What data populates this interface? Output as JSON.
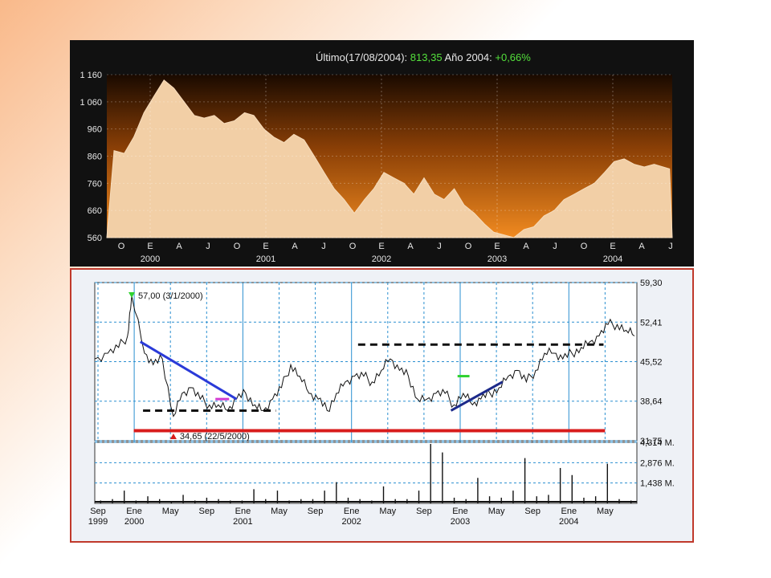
{
  "status": {
    "ultimo_label": "Último(17/08/2004):",
    "ultimo_value": "813,35",
    "anio_label": "Año 2004:",
    "anio_value": "+0,66%"
  },
  "colors": {
    "top_fill_light": "#f2cfa6",
    "top_fill_dark": "#d86a10",
    "top_bg": "#111111",
    "bottom_bg": "#eef1f6",
    "grid": "#2a8fd0"
  },
  "chart_data": [
    {
      "type": "area",
      "x": [
        "2000-01-01",
        "2000-02-01",
        "2000-03-01",
        "2000-04-01",
        "2000-05-01",
        "2000-06-01",
        "2000-07-01",
        "2000-08-01",
        "2000-09-01",
        "2000-10-01",
        "2000-11-01",
        "2000-12-01",
        "2001-01-01",
        "2001-02-01",
        "2001-03-01",
        "2001-04-01",
        "2001-05-01",
        "2001-06-01",
        "2001-07-01",
        "2001-08-01",
        "2001-09-01",
        "2001-10-01",
        "2001-11-01",
        "2001-12-01",
        "2002-01-01",
        "2002-02-01",
        "2002-03-01",
        "2002-04-01",
        "2002-05-01",
        "2002-06-01",
        "2002-07-01",
        "2002-08-01",
        "2002-09-01",
        "2002-10-01",
        "2002-11-01",
        "2002-12-01",
        "2003-01-01",
        "2003-02-01",
        "2003-03-01",
        "2003-04-01",
        "2003-05-01",
        "2003-06-01",
        "2003-07-01",
        "2003-08-01",
        "2003-09-01",
        "2003-10-01",
        "2003-11-01",
        "2003-12-01",
        "2004-01-01",
        "2004-02-01",
        "2004-03-01",
        "2004-04-01",
        "2004-05-01",
        "2004-06-01",
        "2004-07-01",
        "2004-08-17"
      ],
      "values": [
        880,
        870,
        930,
        1020,
        1080,
        1140,
        1110,
        1060,
        1010,
        1000,
        1010,
        980,
        990,
        1020,
        1010,
        960,
        930,
        910,
        940,
        920,
        860,
        800,
        740,
        700,
        650,
        700,
        740,
        800,
        780,
        760,
        720,
        780,
        720,
        700,
        740,
        680,
        650,
        610,
        580,
        570,
        560,
        590,
        600,
        640,
        660,
        700,
        720,
        740,
        760,
        800,
        840,
        850,
        830,
        820,
        830,
        813
      ],
      "ylim": [
        560,
        1160
      ],
      "y_ticks": [
        "1 160",
        "1 060",
        "960",
        "860",
        "760",
        "660",
        "560"
      ],
      "x_ticks": [
        "O",
        "E",
        "A",
        "J",
        "O",
        "E",
        "A",
        "J",
        "O",
        "E",
        "A",
        "J",
        "O",
        "E",
        "A",
        "J",
        "O",
        "E",
        "A",
        "J"
      ],
      "year_labels": [
        "2000",
        "2001",
        "2002",
        "2003",
        "2004"
      ],
      "grid": true
    },
    {
      "type": "line",
      "x": [
        "1999-09-01",
        "1999-10-15",
        "1999-11-20",
        "1999-12-20",
        "2000-01-03",
        "2000-02-15",
        "2000-03-15",
        "2000-04-15",
        "2000-05-22",
        "2000-06-20",
        "2000-07-20",
        "2000-08-20",
        "2000-09-20",
        "2000-10-20",
        "2000-11-20",
        "2000-12-20",
        "2001-01-20",
        "2001-02-20",
        "2001-03-20",
        "2001-04-20",
        "2001-05-20",
        "2001-06-20",
        "2001-07-20",
        "2001-08-20",
        "2001-09-20",
        "2001-10-20",
        "2001-11-20",
        "2001-12-20",
        "2002-01-20",
        "2002-02-20",
        "2002-03-20",
        "2002-04-20",
        "2002-05-20",
        "2002-06-20",
        "2002-07-20",
        "2002-08-20",
        "2002-09-20",
        "2002-10-20",
        "2002-11-20",
        "2002-12-20",
        "2003-01-20",
        "2003-02-20",
        "2003-03-20",
        "2003-04-20",
        "2003-05-20",
        "2003-06-20",
        "2003-07-20",
        "2003-08-20",
        "2003-09-20",
        "2003-10-20",
        "2003-11-20",
        "2003-12-20",
        "2004-01-20",
        "2004-02-20",
        "2004-03-20",
        "2004-04-20",
        "2004-05-20",
        "2004-06-20",
        "2004-07-20",
        "2004-08-17"
      ],
      "values": [
        46,
        47,
        48,
        50,
        57,
        47,
        45,
        46,
        36,
        40,
        41,
        39,
        38,
        38,
        37,
        39,
        40,
        38,
        37,
        39,
        41,
        45,
        43,
        40,
        39,
        37,
        40,
        42,
        43,
        43,
        42,
        44,
        46,
        44,
        43,
        39,
        39,
        40,
        40,
        38,
        40,
        38,
        39,
        40,
        41,
        43,
        44,
        42,
        44,
        47,
        47,
        46,
        47,
        48,
        49,
        50,
        52,
        52,
        51,
        50
      ],
      "ylim": [
        31.75,
        59.3
      ],
      "y_ticks": [
        "59,30",
        "52,41",
        "45,52",
        "38,64",
        "31,75"
      ],
      "x_ticks": [
        "Sep",
        "Ene",
        "May",
        "Sep",
        "Ene",
        "May",
        "Sep",
        "Ene",
        "May",
        "Sep",
        "Ene",
        "May",
        "Sep",
        "Ene",
        "May"
      ],
      "year_labels": [
        "1999",
        "2000",
        "2001",
        "2002",
        "2003",
        "2004"
      ],
      "annotations": [
        "57,00 (3/1/2000)",
        "34,65 (22/5/2000)"
      ],
      "grid": true
    },
    {
      "type": "bar",
      "ylim": [
        0,
        4.314
      ],
      "y_ticks": [
        "4,314 M.",
        "2,876 M.",
        "1,438 M."
      ],
      "values": [
        0.2,
        0.3,
        0.9,
        0.2,
        0.5,
        0.3,
        0.1,
        0.6,
        0.2,
        0.4,
        0.3,
        0.2,
        0.2,
        1.0,
        0.3,
        0.9,
        0.2,
        0.3,
        0.3,
        0.9,
        1.5,
        0.4,
        0.3,
        0.2,
        1.2,
        0.3,
        0.3,
        0.9,
        4.2,
        3.6,
        0.4,
        0.3,
        1.8,
        0.5,
        0.4,
        0.9,
        3.2,
        0.5,
        0.6,
        2.5,
        2.0,
        0.4,
        0.5,
        2.8,
        0.3,
        0.2
      ],
      "grid": true
    }
  ]
}
